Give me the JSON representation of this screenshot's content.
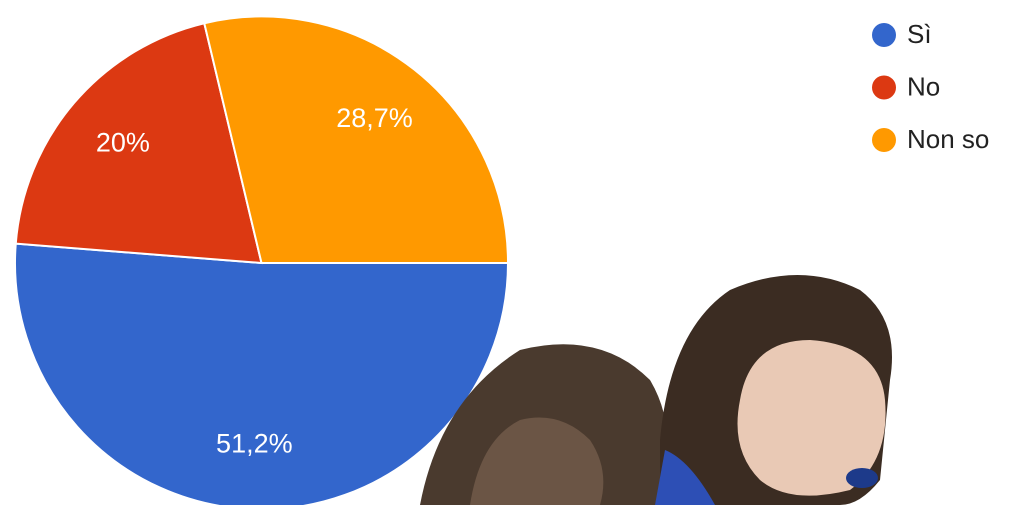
{
  "chart_data": {
    "type": "pie",
    "categories": [
      "Sì",
      "No",
      "Non so"
    ],
    "values": [
      51.2,
      20,
      28.7
    ],
    "value_labels": [
      "51,2%",
      "20%",
      "28,7%"
    ],
    "colors": [
      "#3366cc",
      "#dc3912",
      "#ff9900"
    ],
    "legend": "top-right"
  }
}
